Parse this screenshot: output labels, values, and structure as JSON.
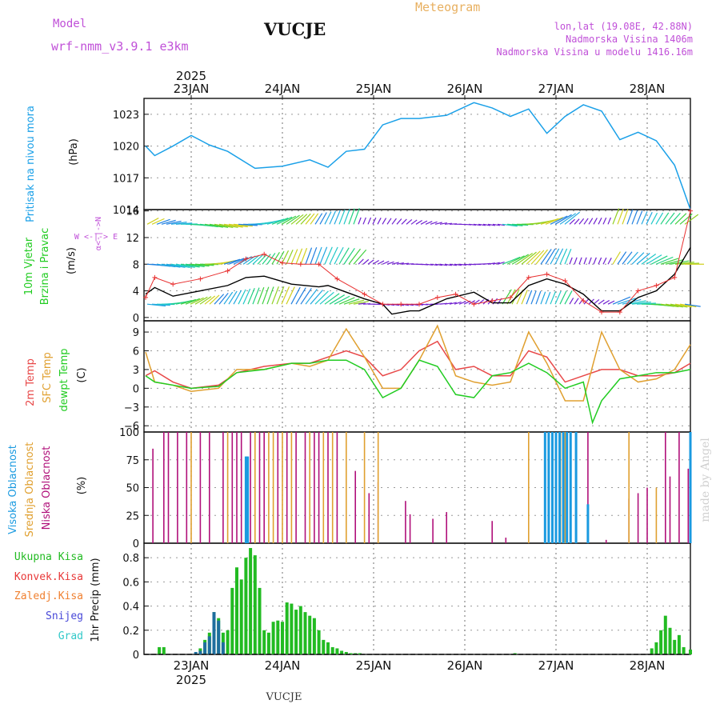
{
  "header": {
    "model_label": "Model",
    "model_name": "wrf-nmm_v3.9.1 e3km",
    "station": "VUCJE",
    "meteogram_label": "Meteogram",
    "lonlat": "lon,lat (19.08E, 42.88N)",
    "elevation": "Nadmorska Visina 1406m",
    "model_elevation": "Nadmorska Visina u modelu 1416.16m",
    "watermark": "made by Angel",
    "footer_station": "VUCJE"
  },
  "colors": {
    "pressure": "#1aa0e8",
    "wind_speed": "#000000",
    "wind_gust": "#e83030",
    "temp2m": "#e84848",
    "sfc_temp": "#e0a030",
    "dewpt": "#22cc22",
    "high_cloud": "#1a9ae0",
    "mid_cloud": "#e0a030",
    "low_cloud": "#b0107a",
    "total_precip": "#22bb22",
    "conv_precip": "#e83838",
    "frz_precip": "#f08030",
    "snow": "#4848d8",
    "hail": "#30c8c8"
  },
  "chart_data": [
    {
      "type": "line",
      "panel": "pressure",
      "ylabel": "Pritisak na nivou mora",
      "unit": "(hPa)",
      "ylim": [
        1014,
        1024.5
      ],
      "yticks": [
        1014,
        1017,
        1020,
        1023
      ],
      "x_days": [
        0.0,
        0.1,
        0.3,
        0.5,
        0.7,
        0.9,
        1.2,
        1.5,
        1.8,
        2.0,
        2.2,
        2.4,
        2.6,
        2.8,
        3.0,
        3.3,
        3.6,
        3.8,
        4.0,
        4.2,
        4.4,
        4.6,
        4.8,
        5.0,
        5.2,
        5.4,
        5.6,
        5.8,
        5.9,
        6.0
      ],
      "values": [
        1020.0,
        1019.1,
        1020.0,
        1021.0,
        1020.1,
        1019.5,
        1017.9,
        1018.1,
        1018.7,
        1018.0,
        1019.5,
        1019.7,
        1022.0,
        1022.6,
        1022.6,
        1022.9,
        1024.1,
        1023.6,
        1022.8,
        1023.5,
        1021.2,
        1022.8,
        1023.9,
        1023.3,
        1020.6,
        1021.3,
        1020.5,
        1018.2,
        1015.8,
        1014.0
      ]
    },
    {
      "type": "line",
      "panel": "wind",
      "ylabel": "10m Vjetar Brzina i Pravac",
      "unit": "(m/s)",
      "compass_label": "W <-|-> E",
      "ylim": [
        -0.5,
        16.2
      ],
      "yticks": [
        0,
        4,
        8,
        12,
        16
      ],
      "series": [
        {
          "name": "speed",
          "x_days": [
            0.0,
            0.1,
            0.3,
            0.6,
            0.9,
            1.1,
            1.3,
            1.6,
            1.9,
            2.0,
            2.2,
            2.4,
            2.6,
            2.7,
            2.9,
            3.0,
            3.3,
            3.6,
            3.8,
            4.0,
            4.2,
            4.4,
            4.6,
            4.8,
            5.0,
            5.2,
            5.4,
            5.6,
            5.8,
            6.0
          ],
          "values": [
            3.5,
            4.5,
            3.2,
            4.0,
            4.8,
            6.0,
            6.2,
            5.0,
            4.6,
            4.8,
            3.8,
            2.8,
            2.0,
            0.5,
            1.0,
            1.0,
            2.8,
            3.8,
            2.2,
            2.2,
            4.8,
            5.8,
            5.0,
            3.5,
            1.0,
            1.0,
            3.0,
            4.0,
            6.5,
            10.5
          ]
        },
        {
          "name": "gust",
          "x_days": [
            0.0,
            0.1,
            0.3,
            0.6,
            0.9,
            1.1,
            1.3,
            1.5,
            1.7,
            1.9,
            2.1,
            2.4,
            2.6,
            2.8,
            3.0,
            3.2,
            3.4,
            3.6,
            3.8,
            4.0,
            4.2,
            4.4,
            4.6,
            4.8,
            5.0,
            5.2,
            5.4,
            5.6,
            5.8,
            6.0
          ],
          "values": [
            3.0,
            6.0,
            5.0,
            5.8,
            7.0,
            8.8,
            9.5,
            8.2,
            8.0,
            8.0,
            5.8,
            3.5,
            2.0,
            2.0,
            2.0,
            3.0,
            3.5,
            2.0,
            2.5,
            3.0,
            6.0,
            6.5,
            5.5,
            2.5,
            0.8,
            0.8,
            4.0,
            4.8,
            6.0,
            16.0
          ]
        }
      ]
    },
    {
      "type": "line",
      "panel": "temperature",
      "ylabel": "2m Temp / SFC Temp / dewpt Temp",
      "unit": "(C)",
      "ylim": [
        -7,
        10.8
      ],
      "yticks": [
        -6,
        -3,
        0,
        3,
        6,
        9
      ],
      "series": [
        {
          "name": "2m Temp",
          "x_days": [
            0.0,
            0.1,
            0.3,
            0.5,
            0.8,
            1.0,
            1.3,
            1.6,
            1.8,
            2.0,
            2.2,
            2.4,
            2.6,
            2.8,
            3.0,
            3.2,
            3.4,
            3.6,
            3.8,
            4.0,
            4.2,
            4.4,
            4.6,
            4.8,
            5.0,
            5.2,
            5.4,
            5.6,
            5.8,
            6.0
          ],
          "values": [
            2.0,
            2.8,
            1.0,
            0.0,
            0.5,
            2.5,
            3.5,
            4.0,
            4.0,
            5.0,
            6.0,
            5.0,
            2.0,
            3.0,
            6.0,
            7.5,
            3.0,
            3.5,
            2.0,
            2.0,
            6.0,
            5.0,
            1.0,
            2.0,
            3.0,
            3.0,
            2.0,
            2.0,
            2.5,
            4.0
          ]
        },
        {
          "name": "SFC Temp",
          "x_days": [
            0.0,
            0.1,
            0.3,
            0.5,
            0.8,
            1.0,
            1.3,
            1.6,
            1.8,
            2.0,
            2.2,
            2.4,
            2.6,
            2.8,
            3.0,
            3.2,
            3.4,
            3.6,
            3.8,
            4.0,
            4.2,
            4.4,
            4.6,
            4.8,
            5.0,
            5.2,
            5.4,
            5.6,
            5.8,
            6.0
          ],
          "values": [
            5.8,
            1.0,
            0.5,
            -0.5,
            0.0,
            3.0,
            3.0,
            4.0,
            3.5,
            4.5,
            9.5,
            5.0,
            0.0,
            0.0,
            4.5,
            10.0,
            2.0,
            1.0,
            0.5,
            1.0,
            9.0,
            4.0,
            -2.0,
            -2.0,
            9.0,
            3.0,
            1.0,
            1.5,
            3.0,
            7.0
          ]
        },
        {
          "name": "dewpt Temp",
          "x_days": [
            0.0,
            0.1,
            0.3,
            0.5,
            0.8,
            1.0,
            1.3,
            1.6,
            1.8,
            2.0,
            2.2,
            2.4,
            2.6,
            2.8,
            3.0,
            3.2,
            3.4,
            3.6,
            3.8,
            4.0,
            4.2,
            4.4,
            4.6,
            4.8,
            4.9,
            5.0,
            5.2,
            5.4,
            5.6,
            5.8,
            6.0
          ],
          "values": [
            2.0,
            1.0,
            0.5,
            0.0,
            0.3,
            2.5,
            3.0,
            4.0,
            4.0,
            4.5,
            4.5,
            3.0,
            -1.5,
            0.0,
            4.5,
            3.5,
            -1.0,
            -1.5,
            2.0,
            2.5,
            4.0,
            2.5,
            0.0,
            1.0,
            -5.5,
            -2.0,
            1.5,
            2.0,
            2.5,
            2.5,
            3.0
          ]
        }
      ]
    },
    {
      "type": "bar",
      "panel": "clouds",
      "ylabel": "Visoka Oblacnost / Srednja Oblacnost / Niska Oblacnost",
      "unit": "(%)",
      "ylim": [
        0,
        100
      ],
      "yticks": [
        0,
        25,
        50,
        75,
        100
      ],
      "series": [
        {
          "name": "Niska Oblacnost",
          "x_days": [
            0.08,
            0.2,
            0.25,
            0.35,
            0.45,
            0.6,
            0.7,
            0.85,
            0.95,
            1.0,
            1.05,
            1.15,
            1.25,
            1.3,
            1.45,
            1.55,
            1.65,
            1.75,
            1.85,
            1.9,
            2.0,
            2.1,
            2.3,
            2.45,
            2.55,
            2.85,
            2.9,
            3.15,
            3.3,
            3.8,
            3.95,
            4.85,
            5.05,
            5.3,
            5.4,
            5.5,
            5.7,
            5.75,
            5.85,
            5.95,
            6.0
          ],
          "values": [
            85,
            100,
            100,
            100,
            100,
            100,
            100,
            100,
            100,
            100,
            100,
            100,
            100,
            100,
            100,
            100,
            100,
            100,
            100,
            100,
            100,
            100,
            65,
            45,
            55,
            38,
            26,
            22,
            28,
            20,
            5,
            100,
            3,
            40,
            45,
            50,
            100,
            60,
            100,
            67,
            70
          ]
        },
        {
          "name": "Srednja Oblacnost",
          "x_days": [
            0.5,
            0.9,
            1.2,
            1.35,
            1.4,
            1.5,
            1.6,
            1.8,
            1.95,
            2.05,
            2.2,
            2.4,
            2.55,
            4.2,
            4.5,
            4.55,
            4.6,
            5.3,
            5.6
          ],
          "values": [
            100,
            100,
            100,
            100,
            100,
            100,
            100,
            100,
            100,
            100,
            100,
            100,
            100,
            100,
            100,
            100,
            100,
            100,
            50
          ]
        },
        {
          "name": "Visoka Oblacnost",
          "x_days": [
            1.1,
            1.12,
            4.38,
            4.42,
            4.46,
            4.5,
            4.54,
            4.58,
            4.62,
            4.66,
            4.72,
            4.85,
            6.0
          ],
          "values": [
            78,
            78,
            100,
            100,
            100,
            100,
            100,
            100,
            100,
            100,
            100,
            35,
            100
          ]
        }
      ]
    },
    {
      "type": "bar",
      "panel": "precipitation",
      "ylabel": "1hr Precip",
      "unit": "(mm)",
      "ylim": [
        0,
        0.92
      ],
      "yticks": [
        0,
        0.2,
        0.4,
        0.6,
        0.8
      ],
      "legend": [
        "Ukupna Kisa",
        "Konvek.Kisa",
        "Zaledj.Kisa",
        "Snijeg",
        "Grad"
      ],
      "series": [
        {
          "name": "Ukupna Kisa",
          "x_days": [
            0.15,
            0.2,
            0.6,
            0.65,
            0.7,
            0.75,
            0.8,
            0.85,
            0.9,
            0.95,
            1.0,
            1.05,
            1.1,
            1.15,
            1.2,
            1.25,
            1.3,
            1.35,
            1.4,
            1.45,
            1.5,
            1.55,
            1.6,
            1.65,
            1.7,
            1.75,
            1.8,
            1.85,
            1.9,
            1.95,
            2.0,
            2.05,
            2.1,
            2.15,
            2.2,
            2.25,
            2.3,
            2.35,
            4.05,
            5.55,
            5.6,
            5.65,
            5.7,
            5.75,
            5.8,
            5.85,
            5.9,
            6.0
          ],
          "values": [
            0.06,
            0.06,
            0.05,
            0.12,
            0.18,
            0.35,
            0.3,
            0.18,
            0.2,
            0.55,
            0.72,
            0.62,
            0.8,
            0.88,
            0.82,
            0.55,
            0.2,
            0.18,
            0.27,
            0.28,
            0.27,
            0.43,
            0.42,
            0.37,
            0.4,
            0.35,
            0.32,
            0.3,
            0.2,
            0.12,
            0.1,
            0.06,
            0.05,
            0.03,
            0.02,
            0.01,
            0.01,
            0.01,
            0.01,
            0.05,
            0.1,
            0.2,
            0.32,
            0.22,
            0.12,
            0.16,
            0.06,
            0.04
          ]
        },
        {
          "name": "Snijeg",
          "x_days": [
            0.55,
            0.6,
            0.65,
            0.7,
            0.75,
            0.8,
            0.85
          ],
          "values": [
            0.02,
            0.03,
            0.1,
            0.15,
            0.35,
            0.28,
            0.1
          ]
        }
      ]
    }
  ],
  "axes": {
    "date_labels": [
      "23JAN",
      "24JAN",
      "25JAN",
      "26JAN",
      "27JAN",
      "28JAN"
    ],
    "year_label": "2025"
  },
  "legend_labels": {
    "pressure": "Pritisak na nivou mora",
    "pressure_unit": "(hPa)",
    "wind_line1": "10m Vjetar",
    "wind_line2": "Brzina i Pravac",
    "wind_unit": "(m/s)",
    "wind_compass": "W <-|-> E",
    "wind_compass_v": "α<-|->N",
    "temp2m": "2m Temp",
    "sfc_temp": "SFC Temp",
    "dewpt": "dewpt Temp",
    "temp_unit": "(C)",
    "high_cloud": "Visoka Oblacnost",
    "mid_cloud": "Srednja Oblacnost",
    "low_cloud": "Niska Oblacnost",
    "cloud_unit": "(%)",
    "precip_total": "Ukupna Kisa",
    "precip_conv": "Konvek.Kisa",
    "precip_frz": "Zaledj.Kisa",
    "precip_snow": "Snijeg",
    "precip_hail": "Grad",
    "precip_axis": "1hr Precip (mm)"
  }
}
